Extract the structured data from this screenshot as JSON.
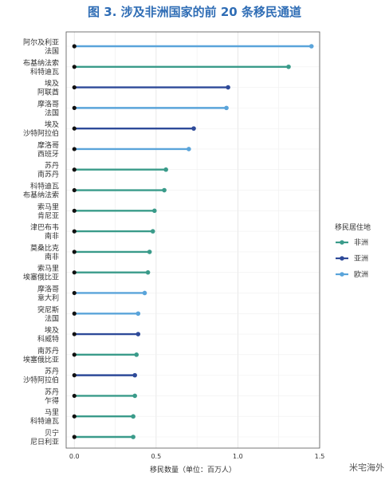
{
  "title": "图 3. 涉及非洲国家的前 20 条移民通道",
  "watermark": "米宅海外",
  "chart_data": {
    "type": "lollipop",
    "title": "图 3. 涉及非洲国家的前 20 条移民通道",
    "xlabel": "移民数量（单位：百万人）",
    "ylabel": "",
    "xlim": [
      -0.05,
      1.5
    ],
    "xticks": [
      "0.0",
      "0.5",
      "1.0",
      "1.5"
    ],
    "grid": true,
    "legend_position": "right",
    "legend_title": "移民居住地",
    "legend": [
      {
        "name": "非洲",
        "color": "#3a9b8a"
      },
      {
        "name": "亚洲",
        "color": "#2e4a99"
      },
      {
        "name": "欧洲",
        "color": "#5aa4da"
      }
    ],
    "corridors": [
      {
        "origin": "阿尔及利亚",
        "destination": "法国",
        "value": 1.45,
        "region": "欧洲"
      },
      {
        "origin": "布基纳法索",
        "destination": "科特迪瓦",
        "value": 1.31,
        "region": "非洲"
      },
      {
        "origin": "埃及",
        "destination": "阿联酋",
        "value": 0.94,
        "region": "亚洲"
      },
      {
        "origin": "摩洛哥",
        "destination": "法国",
        "value": 0.93,
        "region": "欧洲"
      },
      {
        "origin": "埃及",
        "destination": "沙特阿拉伯",
        "value": 0.73,
        "region": "亚洲"
      },
      {
        "origin": "摩洛哥",
        "destination": "西班牙",
        "value": 0.7,
        "region": "欧洲"
      },
      {
        "origin": "苏丹",
        "destination": "南苏丹",
        "value": 0.56,
        "region": "非洲"
      },
      {
        "origin": "科特迪瓦",
        "destination": "布基纳法索",
        "value": 0.55,
        "region": "非洲"
      },
      {
        "origin": "索马里",
        "destination": "肯尼亚",
        "value": 0.49,
        "region": "非洲"
      },
      {
        "origin": "津巴布韦",
        "destination": "南非",
        "value": 0.48,
        "region": "非洲"
      },
      {
        "origin": "莫桑比克",
        "destination": "南非",
        "value": 0.46,
        "region": "非洲"
      },
      {
        "origin": "索马里",
        "destination": "埃塞俄比亚",
        "value": 0.45,
        "region": "非洲"
      },
      {
        "origin": "摩洛哥",
        "destination": "意大利",
        "value": 0.43,
        "region": "欧洲"
      },
      {
        "origin": "突尼斯",
        "destination": "法国",
        "value": 0.39,
        "region": "欧洲"
      },
      {
        "origin": "埃及",
        "destination": "科威特",
        "value": 0.39,
        "region": "亚洲"
      },
      {
        "origin": "南苏丹",
        "destination": "埃塞俄比亚",
        "value": 0.38,
        "region": "非洲"
      },
      {
        "origin": "苏丹",
        "destination": "沙特阿拉伯",
        "value": 0.37,
        "region": "亚洲"
      },
      {
        "origin": "苏丹",
        "destination": "乍得",
        "value": 0.37,
        "region": "非洲"
      },
      {
        "origin": "马里",
        "destination": "科特迪瓦",
        "value": 0.36,
        "region": "非洲"
      },
      {
        "origin": "贝宁",
        "destination": "尼日利亚",
        "value": 0.36,
        "region": "非洲"
      }
    ]
  }
}
